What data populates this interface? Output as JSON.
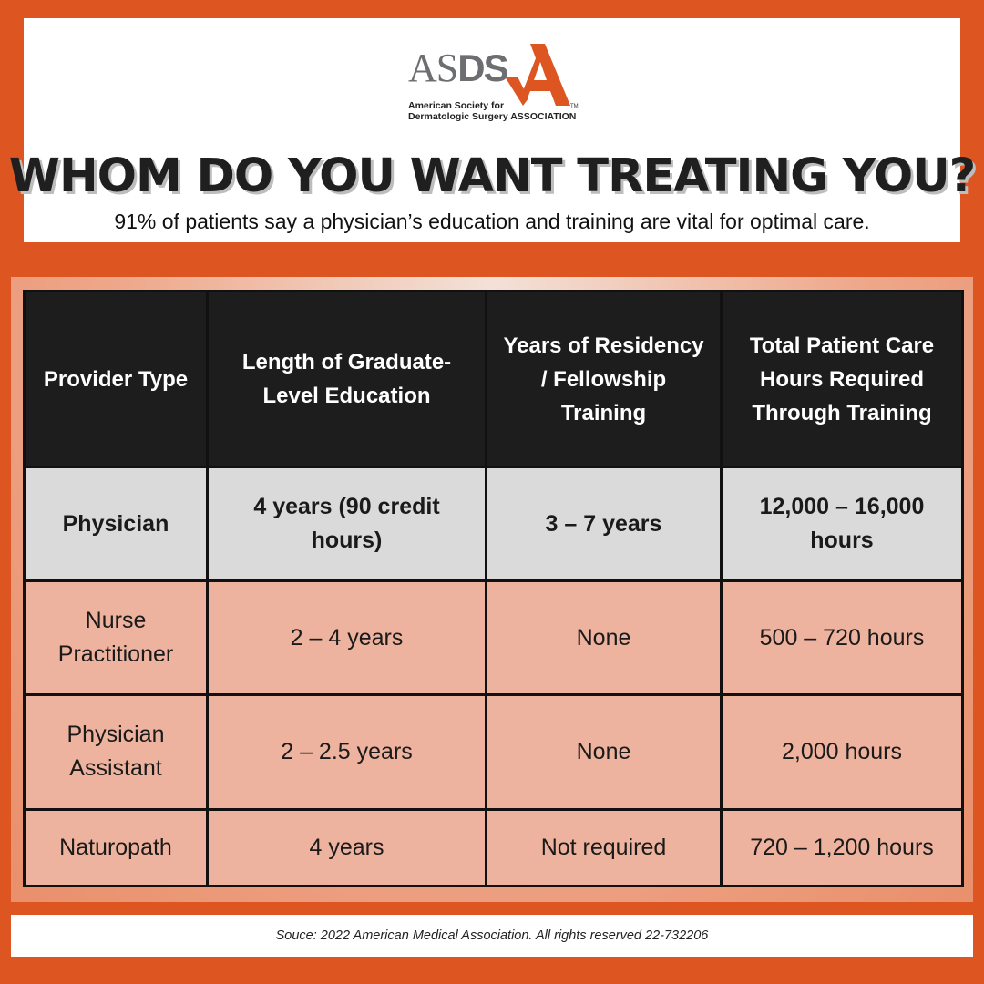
{
  "logo": {
    "letters_light": "AS",
    "letters_bold": "DS",
    "letter_big": "A",
    "tm": "TM",
    "caption_line1": "American Society for",
    "caption_line2": "Dermatologic Surgery ASSOCIATION",
    "colors": {
      "gray": "#6d6e71",
      "orange": "#dd5622"
    }
  },
  "headline": "WHOM DO YOU WANT TREATING YOU?",
  "subhead": "91% of patients say a physician’s education and training are vital for optimal care.",
  "table": {
    "headers": [
      "Provider Type",
      "Length of Graduate-Level Education",
      "Years of Residency / Fellowship Training",
      "Total Patient Care Hours Required Through Training"
    ],
    "rows": [
      {
        "provider": "Physician",
        "education": "4 years (90 credit hours)",
        "residency": "3 – 7 years",
        "hours": "12,000 – 16,000 hours"
      },
      {
        "provider": "Nurse Practitioner",
        "education": "2 – 4 years",
        "residency": "None",
        "hours": "500 – 720 hours"
      },
      {
        "provider": "Physician Assistant",
        "education": "2 – 2.5 years",
        "residency": "None",
        "hours": "2,000 hours"
      },
      {
        "provider": "Naturopath",
        "education": "4 years",
        "residency": "Not required",
        "hours": "720 – 1,200 hours"
      }
    ]
  },
  "footer": "Souce: 2022 American Medical Association. All rights reserved 22-732206",
  "colors": {
    "background": "#dd5622",
    "header_row": "#1d1d1d",
    "physician_row": "#dadada",
    "other_rows": "#eeb39e"
  }
}
